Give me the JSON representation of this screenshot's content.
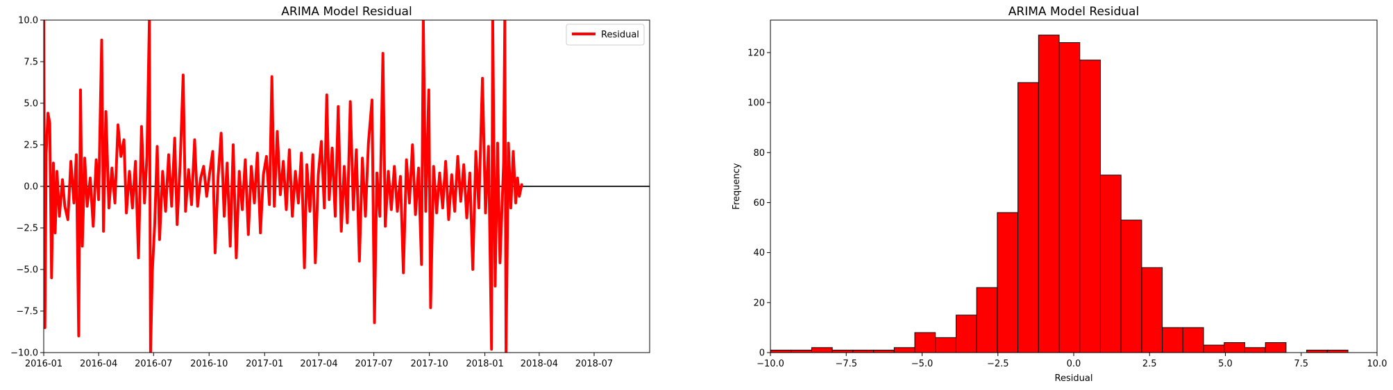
{
  "chart_data": [
    {
      "type": "line",
      "title": "ARIMA Model Residual",
      "xlabel": "",
      "ylabel": "",
      "x_type": "date",
      "xlim": [
        "2016-01-01",
        "2018-10-01"
      ],
      "ylim": [
        -10.0,
        10.0
      ],
      "x_ticks": [
        "2016-01",
        "2016-04",
        "2016-07",
        "2016-10",
        "2017-01",
        "2017-04",
        "2017-07",
        "2017-10",
        "2018-01",
        "2018-04",
        "2018-07"
      ],
      "y_ticks": [
        "−10.0",
        "−7.5",
        "−5.0",
        "−2.5",
        "0.0",
        "2.5",
        "5.0",
        "7.5",
        "10.0"
      ],
      "legend": {
        "position": "upper right",
        "entries": [
          "Residual"
        ]
      },
      "reference_line": {
        "y": 0.0,
        "color": "#000000"
      },
      "series": [
        {
          "name": "Residual",
          "color": "#ff0000",
          "points": [
            [
              "2016-01-01",
              10.0
            ],
            [
              "2016-01-03",
              -8.5
            ],
            [
              "2016-01-05",
              2.0
            ],
            [
              "2016-01-08",
              4.4
            ],
            [
              "2016-01-11",
              3.8
            ],
            [
              "2016-01-14",
              -5.5
            ],
            [
              "2016-01-17",
              1.4
            ],
            [
              "2016-01-20",
              -2.8
            ],
            [
              "2016-01-23",
              0.9
            ],
            [
              "2016-01-27",
              -1.8
            ],
            [
              "2016-02-01",
              0.4
            ],
            [
              "2016-02-05",
              -1.2
            ],
            [
              "2016-02-10",
              -2.0
            ],
            [
              "2016-02-15",
              1.5
            ],
            [
              "2016-02-20",
              -1.0
            ],
            [
              "2016-02-24",
              1.9
            ],
            [
              "2016-02-28",
              -9.0
            ],
            [
              "2016-03-02",
              5.8
            ],
            [
              "2016-03-05",
              -3.6
            ],
            [
              "2016-03-09",
              1.7
            ],
            [
              "2016-03-13",
              -1.2
            ],
            [
              "2016-03-18",
              0.5
            ],
            [
              "2016-03-23",
              -2.4
            ],
            [
              "2016-03-28",
              1.6
            ],
            [
              "2016-04-01",
              -0.8
            ],
            [
              "2016-04-06",
              8.8
            ],
            [
              "2016-04-09",
              -2.7
            ],
            [
              "2016-04-13",
              4.5
            ],
            [
              "2016-04-18",
              -1.3
            ],
            [
              "2016-04-23",
              1.1
            ],
            [
              "2016-04-28",
              -1.0
            ],
            [
              "2016-05-03",
              3.7
            ],
            [
              "2016-05-08",
              1.8
            ],
            [
              "2016-05-13",
              2.8
            ],
            [
              "2016-05-17",
              -1.6
            ],
            [
              "2016-05-22",
              0.9
            ],
            [
              "2016-05-27",
              -1.3
            ],
            [
              "2016-06-01",
              1.5
            ],
            [
              "2016-06-06",
              -4.3
            ],
            [
              "2016-06-11",
              3.6
            ],
            [
              "2016-06-16",
              -1.0
            ],
            [
              "2016-06-20",
              1.8
            ],
            [
              "2016-06-24",
              10.0
            ],
            [
              "2016-06-26",
              -10.0
            ],
            [
              "2016-06-29",
              -5.1
            ],
            [
              "2016-07-03",
              -2.2
            ],
            [
              "2016-07-07",
              2.4
            ],
            [
              "2016-07-11",
              -3.2
            ],
            [
              "2016-07-16",
              0.9
            ],
            [
              "2016-07-21",
              -1.5
            ],
            [
              "2016-07-26",
              1.9
            ],
            [
              "2016-07-31",
              -1.2
            ],
            [
              "2016-08-05",
              2.9
            ],
            [
              "2016-08-09",
              -2.3
            ],
            [
              "2016-08-14",
              1.3
            ],
            [
              "2016-08-19",
              6.7
            ],
            [
              "2016-08-23",
              -1.5
            ],
            [
              "2016-08-28",
              1.0
            ],
            [
              "2016-09-02",
              -1.1
            ],
            [
              "2016-09-07",
              2.8
            ],
            [
              "2016-09-12",
              -1.2
            ],
            [
              "2016-09-17",
              0.5
            ],
            [
              "2016-09-22",
              1.2
            ],
            [
              "2016-09-27",
              -0.6
            ],
            [
              "2016-10-02",
              0.8
            ],
            [
              "2016-10-07",
              2.1
            ],
            [
              "2016-10-11",
              -4.0
            ],
            [
              "2016-10-16",
              0.6
            ],
            [
              "2016-10-21",
              3.2
            ],
            [
              "2016-10-26",
              -1.8
            ],
            [
              "2016-10-31",
              1.4
            ],
            [
              "2016-11-05",
              -3.6
            ],
            [
              "2016-11-10",
              2.5
            ],
            [
              "2016-11-15",
              -4.3
            ],
            [
              "2016-11-20",
              0.9
            ],
            [
              "2016-11-25",
              -1.4
            ],
            [
              "2016-11-30",
              1.6
            ],
            [
              "2016-12-05",
              -2.9
            ],
            [
              "2016-12-10",
              1.2
            ],
            [
              "2016-12-15",
              -1.0
            ],
            [
              "2016-12-20",
              2.0
            ],
            [
              "2016-12-25",
              -2.8
            ],
            [
              "2016-12-30",
              0.7
            ],
            [
              "2017-01-04",
              1.8
            ],
            [
              "2017-01-09",
              -1.1
            ],
            [
              "2017-01-13",
              6.6
            ],
            [
              "2017-01-17",
              -1.2
            ],
            [
              "2017-01-22",
              3.3
            ],
            [
              "2017-01-27",
              -0.5
            ],
            [
              "2017-02-01",
              1.5
            ],
            [
              "2017-02-06",
              -1.4
            ],
            [
              "2017-02-11",
              2.2
            ],
            [
              "2017-02-16",
              -1.8
            ],
            [
              "2017-02-21",
              0.9
            ],
            [
              "2017-02-26",
              -1.0
            ],
            [
              "2017-03-03",
              2.0
            ],
            [
              "2017-03-08",
              -4.9
            ],
            [
              "2017-03-12",
              1.3
            ],
            [
              "2017-03-17",
              -1.5
            ],
            [
              "2017-03-22",
              1.9
            ],
            [
              "2017-03-26",
              -4.6
            ],
            [
              "2017-03-31",
              0.7
            ],
            [
              "2017-04-05",
              2.7
            ],
            [
              "2017-04-10",
              -1.3
            ],
            [
              "2017-04-14",
              5.5
            ],
            [
              "2017-04-18",
              -0.8
            ],
            [
              "2017-04-23",
              2.3
            ],
            [
              "2017-04-28",
              -1.8
            ],
            [
              "2017-05-03",
              4.8
            ],
            [
              "2017-05-08",
              -2.7
            ],
            [
              "2017-05-13",
              1.2
            ],
            [
              "2017-05-18",
              -2.2
            ],
            [
              "2017-05-23",
              5.1
            ],
            [
              "2017-05-28",
              -1.4
            ],
            [
              "2017-06-02",
              2.2
            ],
            [
              "2017-06-07",
              -4.5
            ],
            [
              "2017-06-12",
              1.7
            ],
            [
              "2017-06-17",
              -1.8
            ],
            [
              "2017-06-22",
              2.6
            ],
            [
              "2017-06-28",
              5.2
            ],
            [
              "2017-07-02",
              -8.2
            ],
            [
              "2017-07-06",
              0.8
            ],
            [
              "2017-07-11",
              -1.8
            ],
            [
              "2017-07-16",
              8.0
            ],
            [
              "2017-07-20",
              -2.4
            ],
            [
              "2017-07-25",
              0.9
            ],
            [
              "2017-07-30",
              -1.4
            ],
            [
              "2017-08-04",
              1.2
            ],
            [
              "2017-08-09",
              -1.5
            ],
            [
              "2017-08-14",
              0.6
            ],
            [
              "2017-08-19",
              -5.2
            ],
            [
              "2017-08-24",
              1.6
            ],
            [
              "2017-08-29",
              -1.0
            ],
            [
              "2017-09-03",
              2.5
            ],
            [
              "2017-09-08",
              -1.7
            ],
            [
              "2017-09-13",
              1.1
            ],
            [
              "2017-09-18",
              -4.7
            ],
            [
              "2017-09-21",
              10.0
            ],
            [
              "2017-09-25",
              -1.5
            ],
            [
              "2017-09-30",
              5.8
            ],
            [
              "2017-10-03",
              -7.3
            ],
            [
              "2017-10-08",
              1.2
            ],
            [
              "2017-10-13",
              -1.6
            ],
            [
              "2017-10-18",
              0.8
            ],
            [
              "2017-10-23",
              -1.3
            ],
            [
              "2017-10-28",
              1.5
            ],
            [
              "2017-11-02",
              -2.0
            ],
            [
              "2017-11-07",
              0.7
            ],
            [
              "2017-11-12",
              -1.5
            ],
            [
              "2017-11-17",
              1.8
            ],
            [
              "2017-11-22",
              -0.9
            ],
            [
              "2017-11-27",
              1.3
            ],
            [
              "2017-12-02",
              -1.9
            ],
            [
              "2017-12-07",
              0.8
            ],
            [
              "2017-12-12",
              -5.0
            ],
            [
              "2017-12-17",
              2.1
            ],
            [
              "2017-12-22",
              -1.3
            ],
            [
              "2017-12-28",
              6.5
            ],
            [
              "2018-01-02",
              -1.6
            ],
            [
              "2018-01-07",
              2.4
            ],
            [
              "2018-01-12",
              -9.8
            ],
            [
              "2018-01-14",
              10.0
            ],
            [
              "2018-01-18",
              -6.0
            ],
            [
              "2018-01-22",
              2.6
            ],
            [
              "2018-01-26",
              -4.6
            ],
            [
              "2018-02-01",
              1.4
            ],
            [
              "2018-02-03",
              10.0
            ],
            [
              "2018-02-05",
              -10.0
            ],
            [
              "2018-02-09",
              2.6
            ],
            [
              "2018-02-13",
              -1.3
            ],
            [
              "2018-02-17",
              2.1
            ],
            [
              "2018-02-21",
              -1.0
            ],
            [
              "2018-02-24",
              0.5
            ],
            [
              "2018-02-27",
              -0.6
            ],
            [
              "2018-03-03",
              0.1
            ]
          ]
        }
      ]
    },
    {
      "type": "bar",
      "subtype": "histogram",
      "title": "ARIMA Model Residual",
      "xlabel": "Residual",
      "ylabel": "Frequency",
      "xlim": [
        -10.0,
        10.0
      ],
      "ylim": [
        0,
        133
      ],
      "x_ticks": [
        "−10.0",
        "−7.5",
        "−5.0",
        "−2.5",
        "0.0",
        "2.5",
        "5.0",
        "7.5",
        "10.0"
      ],
      "y_ticks": [
        "0",
        "20",
        "40",
        "60",
        "80",
        "100",
        "120"
      ],
      "bar_color": "#ff0000",
      "edge_color": "#000000",
      "bins": [
        {
          "start": -10.0,
          "end": -9.32,
          "count": 1
        },
        {
          "start": -9.32,
          "end": -8.64,
          "count": 1
        },
        {
          "start": -8.64,
          "end": -7.96,
          "count": 2
        },
        {
          "start": -7.96,
          "end": -7.28,
          "count": 1
        },
        {
          "start": -7.28,
          "end": -6.6,
          "count": 1
        },
        {
          "start": -6.6,
          "end": -5.92,
          "count": 1
        },
        {
          "start": -5.92,
          "end": -5.24,
          "count": 2
        },
        {
          "start": -5.24,
          "end": -4.56,
          "count": 8
        },
        {
          "start": -4.56,
          "end": -3.88,
          "count": 6
        },
        {
          "start": -3.88,
          "end": -3.2,
          "count": 15
        },
        {
          "start": -3.2,
          "end": -2.52,
          "count": 26
        },
        {
          "start": -2.52,
          "end": -1.84,
          "count": 56
        },
        {
          "start": -1.84,
          "end": -1.16,
          "count": 108
        },
        {
          "start": -1.16,
          "end": -0.48,
          "count": 127
        },
        {
          "start": -0.48,
          "end": 0.2,
          "count": 124
        },
        {
          "start": 0.2,
          "end": 0.88,
          "count": 117
        },
        {
          "start": 0.88,
          "end": 1.56,
          "count": 71
        },
        {
          "start": 1.56,
          "end": 2.24,
          "count": 53
        },
        {
          "start": 2.24,
          "end": 2.92,
          "count": 34
        },
        {
          "start": 2.92,
          "end": 3.6,
          "count": 10
        },
        {
          "start": 3.6,
          "end": 4.28,
          "count": 10
        },
        {
          "start": 4.28,
          "end": 4.96,
          "count": 3
        },
        {
          "start": 4.96,
          "end": 5.64,
          "count": 4
        },
        {
          "start": 5.64,
          "end": 6.32,
          "count": 2
        },
        {
          "start": 6.32,
          "end": 7.0,
          "count": 4
        },
        {
          "start": 7.0,
          "end": 7.68,
          "count": 0
        },
        {
          "start": 7.68,
          "end": 8.36,
          "count": 1
        },
        {
          "start": 8.36,
          "end": 9.04,
          "count": 1
        }
      ]
    }
  ]
}
